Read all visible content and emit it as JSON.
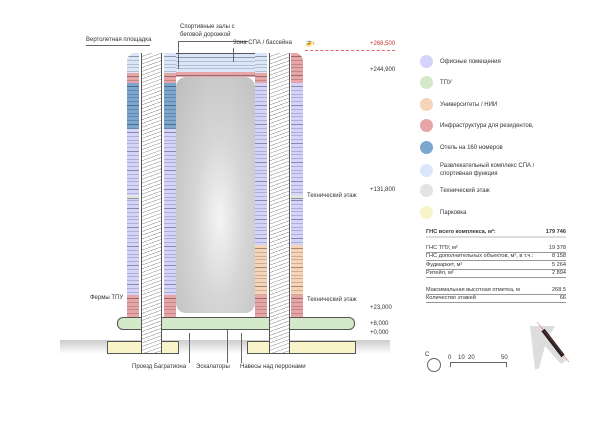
{
  "labels": {
    "helipad": "Вертолетная площадка",
    "sports_halls": "Спортивные залы с беговой дорожкой",
    "spa": "Зона СПА / бассейна",
    "tech_floor_upper": "Технический этаж",
    "tech_floor_lower": "Технический этаж",
    "tpu_trusses": "Фермы ТПУ",
    "bagration": "Проезд Багратиона",
    "escalators": "Эскалаторы",
    "canopies": "Навесы над перронами"
  },
  "elevations": [
    "+268,500",
    "+244,900",
    "+131,800",
    "+23,000",
    "+8,000",
    "+0,000"
  ],
  "legend": [
    {
      "label": "Офисные помещения",
      "color": "#d4d4fb"
    },
    {
      "label": "ТПУ",
      "color": "#d3e9c9"
    },
    {
      "label": "Университеты / НИИ",
      "color": "#f6d4b8"
    },
    {
      "label": "Инфраструктура для резидентов,",
      "color": "#e7a5a7"
    },
    {
      "label": "Отель на 160 номеров",
      "color": "#7aa6cf"
    },
    {
      "label": "Развлекательный комплекс СПА / спортивная функция",
      "color": "#dbe6fb"
    },
    {
      "label": "Технический этаж",
      "color": "#e3e3e3"
    },
    {
      "label": "Парковка",
      "color": "#f8f3c8"
    }
  ],
  "stats": {
    "total": {
      "label": "ГНС всего комплекса, м²:",
      "value": "179 746"
    },
    "rows": [
      {
        "label": "ГНС ТПУ, м²",
        "value": "19 378"
      },
      {
        "label": "ГНС дополнительных объектов, м², в т.ч.:",
        "value": "8 158"
      },
      {
        "label": "Фудмаркет, м²",
        "value": "5 264"
      },
      {
        "label": "Ритейл, м²",
        "value": "2 894"
      }
    ],
    "rows2": [
      {
        "label": "Максимальная высотная отметка, м",
        "value": "268.5"
      },
      {
        "label": "Количество этажей",
        "value": "66"
      }
    ]
  },
  "scale": {
    "north": "С",
    "ticks": [
      "0",
      "10",
      "20",
      "50"
    ]
  }
}
